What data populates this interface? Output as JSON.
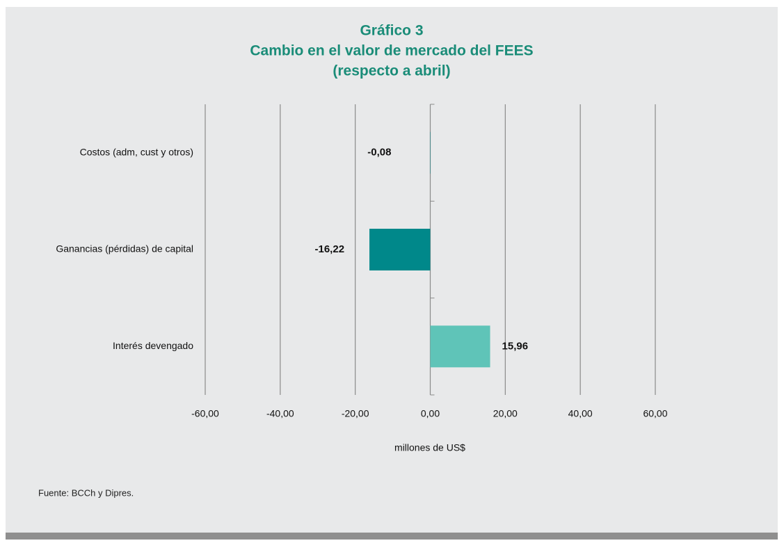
{
  "chart_data": {
    "type": "hbar",
    "title": [
      "Gráfico 3",
      "Cambio en el valor de mercado del FEES",
      "(respecto a abril)"
    ],
    "categories": [
      "Costos (adm, cust y otros)",
      "Ganancias (pérdidas) de capital",
      "Interés devengado"
    ],
    "values": [
      -0.08,
      -16.22,
      15.96
    ],
    "value_labels": [
      "-0,08",
      "-16,22",
      "15,96"
    ],
    "colors": [
      "#00888a",
      "#00888a",
      "#5fc4b8"
    ],
    "xlim": [
      -60,
      60
    ],
    "xticks": [
      {
        "value": -60,
        "label": "-60,00"
      },
      {
        "value": -40,
        "label": "-40,00"
      },
      {
        "value": -20,
        "label": "-20,00"
      },
      {
        "value": 0,
        "label": "0,00"
      },
      {
        "value": 20,
        "label": "20,00"
      },
      {
        "value": 40,
        "label": "40,00"
      },
      {
        "value": 60,
        "label": "60,00"
      }
    ],
    "grid": true,
    "x_label": "millones de US$",
    "source": "Fuente: BCCh y Dipres."
  }
}
